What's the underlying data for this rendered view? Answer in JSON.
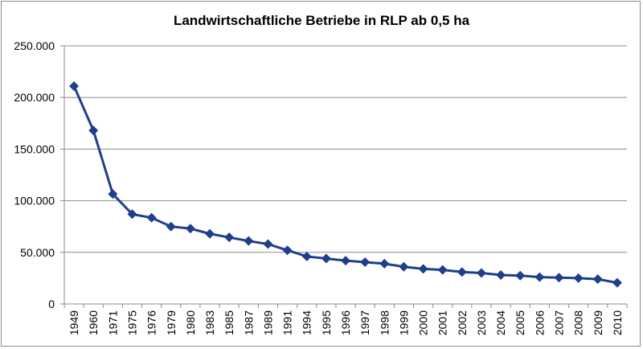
{
  "chart_data": {
    "type": "line",
    "title": "Landwirtschaftliche Betriebe in RLP ab 0,5 ha",
    "xlabel": "",
    "ylabel": "",
    "ylim": [
      0,
      250000
    ],
    "yticks": [
      0,
      50000,
      100000,
      150000,
      200000,
      250000
    ],
    "ytick_labels": [
      "0",
      "50.000",
      "100.000",
      "150.000",
      "200.000",
      "250.000"
    ],
    "grid": "horizontal",
    "legend": "none",
    "line_color": "#1f3f8a",
    "categories": [
      "1949",
      "1960",
      "1971",
      "1975",
      "1976",
      "1979",
      "1980",
      "1983",
      "1985",
      "1987",
      "1989",
      "1991",
      "1994",
      "1995",
      "1996",
      "1997",
      "1998",
      "1999",
      "2000",
      "2001",
      "2002",
      "2003",
      "2004",
      "2005",
      "2006",
      "2007",
      "2008",
      "2009",
      "2010"
    ],
    "values": [
      211000,
      168000,
      106500,
      87000,
      83500,
      75000,
      73000,
      68000,
      64500,
      61000,
      58000,
      52000,
      46000,
      44000,
      42000,
      40500,
      39000,
      36000,
      34000,
      33000,
      31000,
      30000,
      28000,
      27500,
      26000,
      25500,
      25000,
      24000,
      20500
    ]
  }
}
